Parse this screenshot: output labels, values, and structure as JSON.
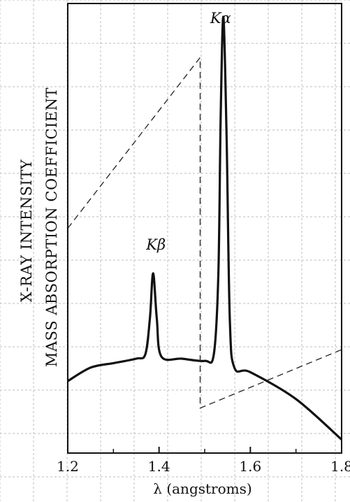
{
  "chart_data": {
    "type": "line",
    "title": "",
    "xlabel": "λ (angstroms)",
    "ylabel": "X-RAY INTENSITY",
    "ylabel2": "MASS ABSORPTION COEFFICIENT",
    "xlim": [
      1.2,
      1.8
    ],
    "ylim": [
      0,
      1
    ],
    "xticks": [
      1.2,
      1.4,
      1.6,
      1.8
    ],
    "xtick_labels": [
      "1.2",
      "1.4",
      "1.6",
      "1.8"
    ],
    "grid": true,
    "series": [
      {
        "style": "solid",
        "x": [
          1.2,
          1.25,
          1.3,
          1.35,
          1.37,
          1.38,
          1.387,
          1.395,
          1.405,
          1.45,
          1.5,
          1.52,
          1.53,
          1.535,
          1.541,
          1.548,
          1.555,
          1.565,
          1.6,
          1.7,
          1.8
        ],
        "y": [
          0.16,
          0.19,
          0.2,
          0.21,
          0.22,
          0.3,
          0.4,
          0.3,
          0.215,
          0.21,
          0.205,
          0.22,
          0.4,
          0.75,
          0.97,
          0.7,
          0.3,
          0.19,
          0.18,
          0.12,
          0.03
        ]
      },
      {
        "style": "dashed",
        "x": [
          1.2,
          1.49,
          1.49,
          1.8
        ],
        "y": [
          0.5,
          0.88,
          0.1,
          0.23
        ]
      }
    ],
    "annotations": [
      {
        "text": "Kα",
        "x": 1.541,
        "y": 1.0
      },
      {
        "text": "Kβ",
        "x": 1.387,
        "y": 0.46
      }
    ]
  }
}
